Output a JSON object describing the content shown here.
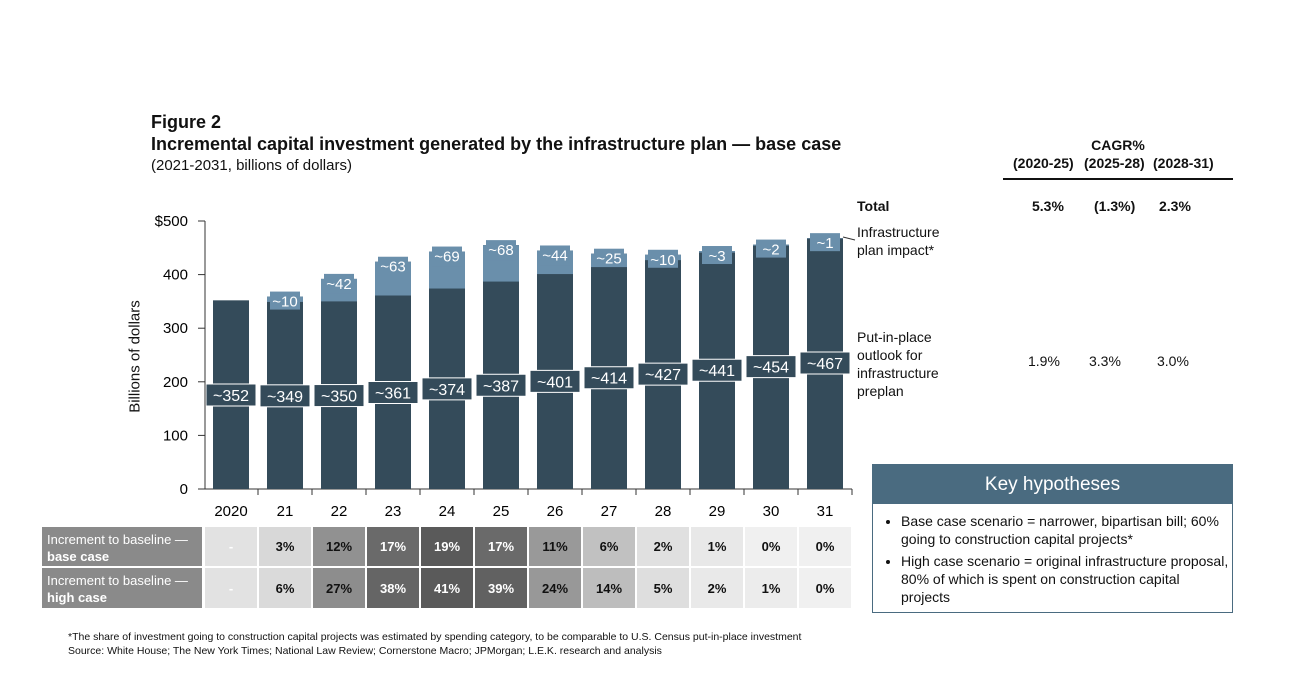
{
  "figure_label": "Figure 2",
  "title": "Incremental capital investment generated by the infrastructure plan — base case",
  "subtitle": "(2021-2031, billions of dollars)",
  "chart_data": {
    "type": "bar",
    "stacked": true,
    "ylabel": "Billions of dollars",
    "ylim": [
      0,
      500
    ],
    "yticks": [
      "0",
      "100",
      "200",
      "300",
      "400",
      "$500"
    ],
    "ytick_values": [
      0,
      100,
      200,
      300,
      400,
      500
    ],
    "categories": [
      "2020",
      "21",
      "22",
      "23",
      "24",
      "25",
      "26",
      "27",
      "28",
      "29",
      "30",
      "31"
    ],
    "series": [
      {
        "name": "Put-in-place outlook for infrastructure preplan",
        "values": [
          352,
          349,
          350,
          361,
          374,
          387,
          401,
          414,
          427,
          441,
          454,
          467
        ],
        "labels": [
          "~352",
          "~349",
          "~350",
          "~361",
          "~374",
          "~387",
          "~401",
          "~414",
          "~427",
          "~441",
          "~454",
          "~467"
        ],
        "color": "#344b5a"
      },
      {
        "name": "Infrastructure plan impact*",
        "values": [
          0,
          10,
          42,
          63,
          69,
          68,
          44,
          25,
          10,
          3,
          2,
          1
        ],
        "labels": [
          "",
          "~10",
          "~42",
          "~63",
          "~69",
          "~68",
          "~44",
          "~25",
          "~10",
          "~3",
          "~2",
          "~1"
        ],
        "color": "#6a8fab"
      }
    ]
  },
  "legend_labels": {
    "impact": "Infrastructure plan impact*",
    "preplan": "Put-in-place outlook for infrastructure preplan",
    "total": "Total"
  },
  "cagr": {
    "header": "CAGR%",
    "periods": [
      "(2020-25)",
      "(2025-28)",
      "(2028-31)"
    ],
    "total": [
      "5.3%",
      "(1.3%)",
      "2.3%"
    ],
    "preplan": [
      "1.9%",
      "3.3%",
      "3.0%"
    ]
  },
  "table": {
    "rows": [
      {
        "label": "Increment to baseline —",
        "label_bold": "base case",
        "values": [
          "-",
          "3%",
          "12%",
          "17%",
          "19%",
          "17%",
          "11%",
          "6%",
          "2%",
          "1%",
          "0%",
          "0%"
        ]
      },
      {
        "label": "Increment to baseline —",
        "label_bold": "high case",
        "values": [
          "-",
          "6%",
          "27%",
          "38%",
          "41%",
          "39%",
          "24%",
          "14%",
          "5%",
          "2%",
          "1%",
          "0%"
        ]
      }
    ]
  },
  "key": {
    "title": "Key hypotheses",
    "items": [
      "Base case scenario = narrower, bipartisan bill; 60% going to construction capital projects*",
      "High case scenario = original infrastructure proposal, 80% of which is spent on construction capital projects"
    ]
  },
  "footnote": "*The share of investment going to construction capital projects was estimated by spending category, to be comparable to U.S. Census put-in-place investment",
  "source": "Source:  White House; The New York Times; National Law Review; Cornerstone Macro; JPMorgan; L.E.K. research and analysis"
}
